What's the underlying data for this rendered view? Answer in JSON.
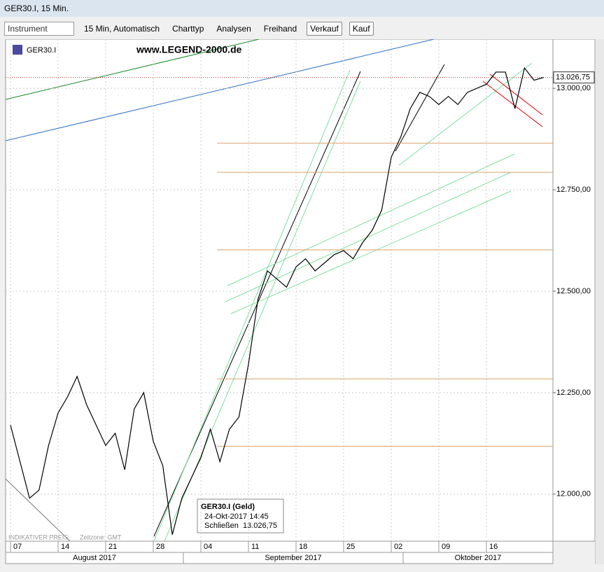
{
  "window": {
    "title": "GER30.I, 15 Min."
  },
  "toolbar": {
    "instrument": "Instrument",
    "interval": "15 Min,  Automatisch",
    "charttype": "Charttyp",
    "analysis": "Analysen",
    "freehand": "Freihand",
    "sell": "Verkauf",
    "buy": "Kauf"
  },
  "chart_data": {
    "type": "line",
    "symbol": "GER30.I",
    "watermark": "www.LEGEND-2000.de",
    "categories": [
      "07",
      null,
      null,
      null,
      null,
      "14",
      null,
      null,
      null,
      null,
      "21",
      null,
      null,
      null,
      null,
      "28",
      null,
      null,
      null,
      null,
      "04",
      null,
      null,
      null,
      null,
      "11",
      null,
      null,
      null,
      null,
      "18",
      null,
      null,
      null,
      null,
      "25",
      null,
      null,
      null,
      null,
      "02",
      null,
      null,
      null,
      null,
      "09",
      null,
      null,
      null,
      null,
      "16",
      null,
      null,
      null,
      null,
      null,
      null
    ],
    "series": [
      {
        "name": "GER30.I",
        "color": "#000000",
        "values": [
          12170,
          12080,
          11990,
          12010,
          12120,
          12200,
          12240,
          12290,
          12220,
          12170,
          12120,
          12150,
          12060,
          12210,
          12250,
          12130,
          12070,
          11900,
          11990,
          12040,
          12090,
          12160,
          12080,
          12160,
          12190,
          12320,
          12480,
          12550,
          12530,
          12510,
          12560,
          12580,
          12550,
          12570,
          12590,
          12600,
          12580,
          12620,
          12650,
          12700,
          12830,
          12880,
          12950,
          12990,
          12980,
          12960,
          12980,
          12960,
          12990,
          13000,
          13010,
          13040,
          13040,
          12950,
          13050,
          13020,
          13026.75
        ]
      }
    ],
    "months": [
      "August 2017",
      "September 2017",
      "Oktober 2017"
    ],
    "ylim": [
      11884,
      13121
    ],
    "yticks": [
      {
        "value": 12000,
        "label": "12.000,00"
      },
      {
        "value": 12250,
        "label": "12.250,00"
      },
      {
        "value": 12500,
        "label": "12.500,00"
      },
      {
        "value": 12750,
        "label": "12.750,00"
      },
      {
        "value": 13000,
        "label": "13.000,00"
      }
    ],
    "last_price": {
      "value": 13026.75,
      "label": "13.026,75"
    },
    "levels": [
      12865,
      12793,
      12602,
      12284,
      12118
    ],
    "level_color": "#d9a36a",
    "grid": true,
    "footer": {
      "indicative": "INDIKATIVER PREIS",
      "timezone": "Zeitzone: GMT"
    },
    "info": {
      "title": "GER30.I (Geld)",
      "time": "24-Okt-2017 14:45",
      "close_label": "Schließen",
      "close": "13.026,75"
    }
  }
}
